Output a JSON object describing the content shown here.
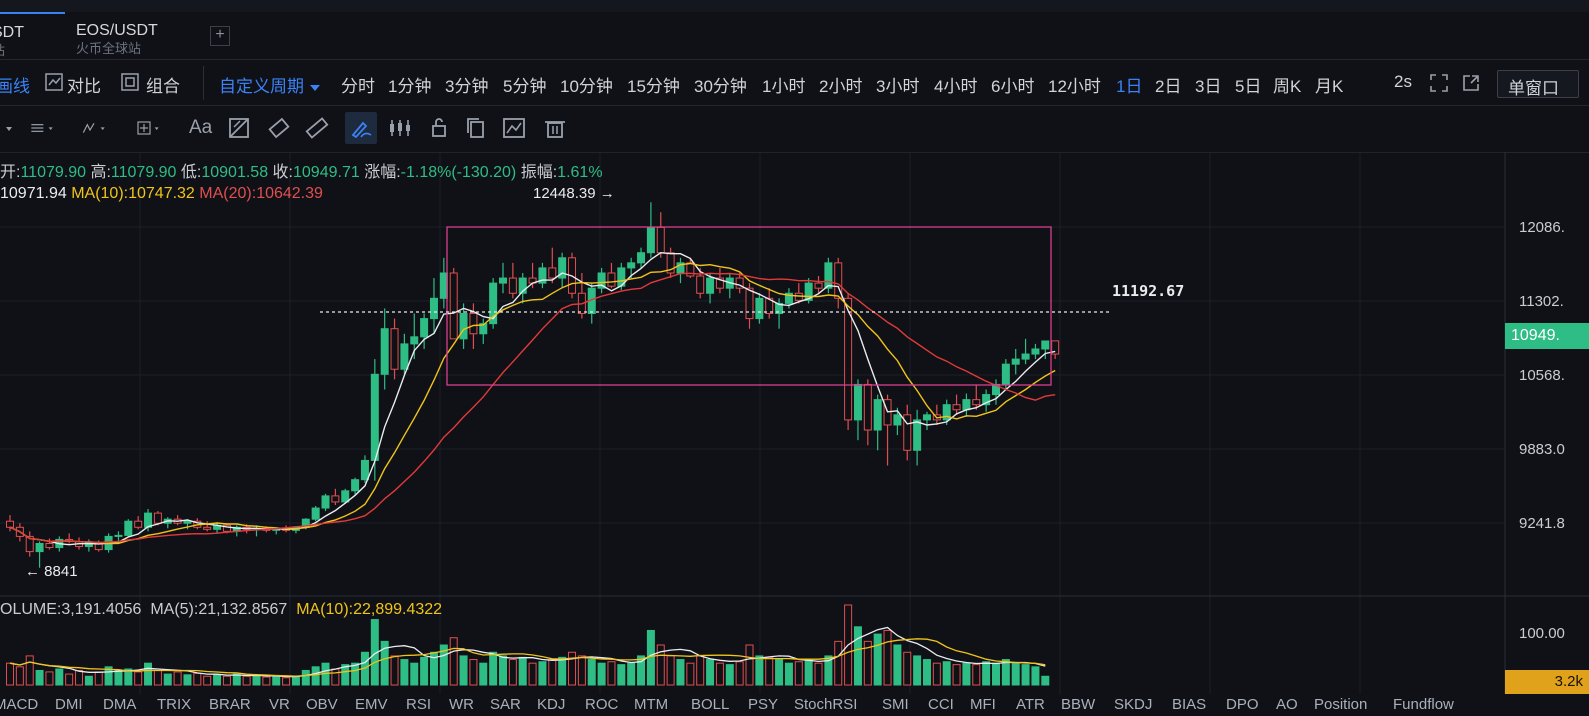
{
  "tabs": [
    {
      "name": "SDT",
      "subtitle": "站"
    },
    {
      "name": "EOS/USDT",
      "subtitle": "火币全球站"
    }
  ],
  "add_tab_label": "+",
  "view": {
    "indicator": "画线",
    "compare": "对比",
    "combine": "组合"
  },
  "custom_period": "自定义周期",
  "periods": [
    "分时",
    "1分钟",
    "3分钟",
    "5分钟",
    "10分钟",
    "15分钟",
    "30分钟",
    "1小时",
    "2小时",
    "3小时",
    "4小时",
    "6小时",
    "12小时",
    "1日",
    "2日",
    "3日",
    "5日",
    "周K",
    "月K"
  ],
  "active_period": "1日",
  "refresh": "2s",
  "window_select": "单窗口",
  "toolbar_icons": [
    "menu-caret-icon",
    "settings-lines-icon",
    "fib-icon",
    "crosshair-icon",
    "text-tool-icon",
    "pattern-icon",
    "eraser-icon",
    "ruler-icon",
    "draw-pen-icon",
    "candle-group-icon",
    "lock-icon",
    "copy-icon",
    "magnet-icon",
    "trash-icon"
  ],
  "ohlc": {
    "open_label": "开:",
    "open": "11079.90",
    "high_label": "高:",
    "high": "11079.90",
    "low_label": "低:",
    "low": "10901.58",
    "close_label": "收:",
    "close": "10949.71",
    "change_label": "涨幅:",
    "change": "-1.18%(-130.20)",
    "amp_label": "振幅:",
    "amp": "1.61%"
  },
  "ma": {
    "ma5": "10971.94",
    "ma10_label": "MA(10):",
    "ma10": "10747.32",
    "ma20_label": "MA(20):",
    "ma20": "10642.39"
  },
  "annotations": {
    "high": "12448.39 →",
    "low": "← 8841",
    "dotted_level": "11192.67"
  },
  "y_axis": [
    "12086.",
    "11302.",
    "10568.",
    "9883.0",
    "9241.8"
  ],
  "price_badge": "10949.",
  "volume": {
    "label": "OLUME:3,191.4056",
    "ma5": "MA(5):21,132.8567",
    "ma10": "MA(10):22,899.4322",
    "axis": "100.00",
    "badge": "3.2k"
  },
  "indicators": [
    "MACD",
    "DMI",
    "DMA",
    "TRIX",
    "BRAR",
    "VR",
    "OBV",
    "EMV",
    "RSI",
    "WR",
    "SAR",
    "KDJ",
    "ROC",
    "MTM",
    "BOLL",
    "PSY",
    "StochRSI",
    "SMI",
    "CCI",
    "MFI",
    "ATR",
    "BBW",
    "SKDJ",
    "BIAS",
    "DPO",
    "AO",
    "Position",
    "Fundflow"
  ],
  "colors": {
    "up": "#2ebd85",
    "down": "#e04f4f",
    "ma5": "#e9ebee",
    "ma10": "#f0c419",
    "ma20": "#e03a3a",
    "accent": "#3b82f6",
    "box": "#d93f8f"
  },
  "chart_data": {
    "type": "candlestick",
    "y_range": [
      8700,
      12700
    ],
    "candles": [
      [
        9300,
        9360,
        9200,
        9240
      ],
      [
        9240,
        9280,
        9100,
        9150
      ],
      [
        9150,
        9200,
        8950,
        9000
      ],
      [
        9000,
        9100,
        8841,
        9080
      ],
      [
        9080,
        9130,
        9020,
        9040
      ],
      [
        9040,
        9150,
        9000,
        9120
      ],
      [
        9120,
        9180,
        9080,
        9100
      ],
      [
        9100,
        9140,
        9020,
        9050
      ],
      [
        9050,
        9120,
        9000,
        9090
      ],
      [
        9090,
        9110,
        9000,
        9020
      ],
      [
        9020,
        9180,
        8990,
        9150
      ],
      [
        9150,
        9200,
        9100,
        9160
      ],
      [
        9160,
        9320,
        9140,
        9300
      ],
      [
        9300,
        9350,
        9220,
        9240
      ],
      [
        9240,
        9420,
        9200,
        9380
      ],
      [
        9380,
        9400,
        9260,
        9280
      ],
      [
        9280,
        9340,
        9230,
        9320
      ],
      [
        9320,
        9360,
        9260,
        9280
      ],
      [
        9280,
        9320,
        9220,
        9300
      ],
      [
        9300,
        9330,
        9220,
        9240
      ],
      [
        9240,
        9300,
        9200,
        9220
      ],
      [
        9220,
        9290,
        9180,
        9260
      ],
      [
        9260,
        9280,
        9180,
        9200
      ],
      [
        9200,
        9260,
        9150,
        9240
      ],
      [
        9240,
        9270,
        9180,
        9220
      ],
      [
        9220,
        9260,
        9150,
        9230
      ],
      [
        9230,
        9250,
        9190,
        9210
      ],
      [
        9210,
        9240,
        9170,
        9230
      ],
      [
        9230,
        9260,
        9190,
        9210
      ],
      [
        9210,
        9250,
        9180,
        9240
      ],
      [
        9240,
        9330,
        9220,
        9320
      ],
      [
        9320,
        9450,
        9300,
        9430
      ],
      [
        9430,
        9570,
        9400,
        9550
      ],
      [
        9550,
        9620,
        9460,
        9490
      ],
      [
        9490,
        9620,
        9470,
        9600
      ],
      [
        9600,
        9730,
        9560,
        9710
      ],
      [
        9710,
        9950,
        9680,
        9900
      ],
      [
        9900,
        10900,
        9700,
        10750
      ],
      [
        10750,
        11400,
        10600,
        11200
      ],
      [
        11200,
        11300,
        10700,
        10800
      ],
      [
        10800,
        11150,
        10750,
        11050
      ],
      [
        11050,
        11350,
        10900,
        11120
      ],
      [
        11120,
        11350,
        11000,
        11300
      ],
      [
        11300,
        11700,
        11150,
        11500
      ],
      [
        11500,
        11900,
        11400,
        11750
      ],
      [
        11750,
        11800,
        11100,
        11100
      ],
      [
        11100,
        11450,
        11000,
        11350
      ],
      [
        11350,
        11450,
        11000,
        11150
      ],
      [
        11150,
        11300,
        11050,
        11250
      ],
      [
        11250,
        11700,
        11200,
        11650
      ],
      [
        11650,
        11850,
        11550,
        11700
      ],
      [
        11700,
        11850,
        11500,
        11550
      ],
      [
        11550,
        11750,
        11450,
        11700
      ],
      [
        11700,
        11850,
        11600,
        11650
      ],
      [
        11650,
        11850,
        11600,
        11800
      ],
      [
        11800,
        12000,
        11650,
        11700
      ],
      [
        11700,
        11950,
        11600,
        11900
      ],
      [
        11900,
        11950,
        11500,
        11550
      ],
      [
        11550,
        11750,
        11300,
        11350
      ],
      [
        11350,
        11650,
        11250,
        11600
      ],
      [
        11600,
        11800,
        11550,
        11750
      ],
      [
        11750,
        11850,
        11600,
        11620
      ],
      [
        11620,
        11850,
        11580,
        11800
      ],
      [
        11800,
        11900,
        11700,
        11850
      ],
      [
        11850,
        12000,
        11800,
        11950
      ],
      [
        11950,
        12448,
        11900,
        12200
      ],
      [
        12200,
        12350,
        11900,
        11950
      ],
      [
        11950,
        12000,
        11700,
        11750
      ],
      [
        11750,
        11900,
        11650,
        11850
      ],
      [
        11850,
        11900,
        11700,
        11720
      ],
      [
        11720,
        11800,
        11500,
        11550
      ],
      [
        11550,
        11750,
        11450,
        11700
      ],
      [
        11700,
        11800,
        11550,
        11600
      ],
      [
        11600,
        11750,
        11500,
        11700
      ],
      [
        11700,
        11750,
        11550,
        11600
      ],
      [
        11600,
        11650,
        11200,
        11300
      ],
      [
        11300,
        11550,
        11250,
        11500
      ],
      [
        11500,
        11600,
        11300,
        11350
      ],
      [
        11350,
        11500,
        11200,
        11450
      ],
      [
        11450,
        11600,
        11400,
        11550
      ],
      [
        11550,
        11650,
        11450,
        11480
      ],
      [
        11480,
        11700,
        11450,
        11650
      ],
      [
        11650,
        11720,
        11550,
        11600
      ],
      [
        11600,
        11900,
        11550,
        11850
      ],
      [
        11850,
        11900,
        11400,
        11500
      ],
      [
        11500,
        11550,
        10200,
        10300
      ],
      [
        10300,
        10700,
        10100,
        10650
      ],
      [
        10650,
        10700,
        10050,
        10200
      ],
      [
        10200,
        10550,
        10000,
        10500
      ],
      [
        10500,
        10550,
        9850,
        10250
      ],
      [
        10250,
        10420,
        10150,
        10350
      ],
      [
        10350,
        10450,
        9900,
        10000
      ],
      [
        10000,
        10400,
        9850,
        10300
      ],
      [
        10300,
        10380,
        10200,
        10350
      ],
      [
        10350,
        10450,
        10250,
        10300
      ],
      [
        10300,
        10500,
        10250,
        10450
      ],
      [
        10450,
        10550,
        10350,
        10400
      ],
      [
        10400,
        10560,
        10330,
        10500
      ],
      [
        10500,
        10650,
        10400,
        10450
      ],
      [
        10450,
        10600,
        10380,
        10550
      ],
      [
        10550,
        10700,
        10450,
        10650
      ],
      [
        10650,
        10900,
        10600,
        10850
      ],
      [
        10850,
        11000,
        10750,
        10900
      ],
      [
        10900,
        11100,
        10850,
        10950
      ],
      [
        10950,
        11050,
        10900,
        11000
      ],
      [
        11000,
        11079,
        10901,
        11079
      ],
      [
        11079.9,
        11079.9,
        10901.58,
        10949.71
      ]
    ],
    "volume": [
      30,
      25,
      40,
      20,
      18,
      22,
      15,
      20,
      12,
      18,
      25,
      20,
      22,
      18,
      30,
      20,
      15,
      18,
      14,
      16,
      12,
      14,
      12,
      15,
      12,
      13,
      11,
      12,
      10,
      12,
      20,
      25,
      30,
      22,
      28,
      30,
      45,
      90,
      60,
      40,
      35,
      30,
      38,
      45,
      55,
      65,
      40,
      35,
      30,
      45,
      40,
      35,
      38,
      30,
      32,
      35,
      38,
      45,
      40,
      35,
      30,
      32,
      28,
      30,
      40,
      75,
      55,
      40,
      35,
      30,
      40,
      35,
      30,
      28,
      32,
      55,
      40,
      38,
      35,
      30,
      32,
      35,
      30,
      40,
      60,
      110,
      80,
      60,
      70,
      75,
      55,
      45,
      40,
      35,
      30,
      32,
      28,
      30,
      28,
      32,
      30,
      35,
      30,
      28,
      25,
      12
    ]
  }
}
